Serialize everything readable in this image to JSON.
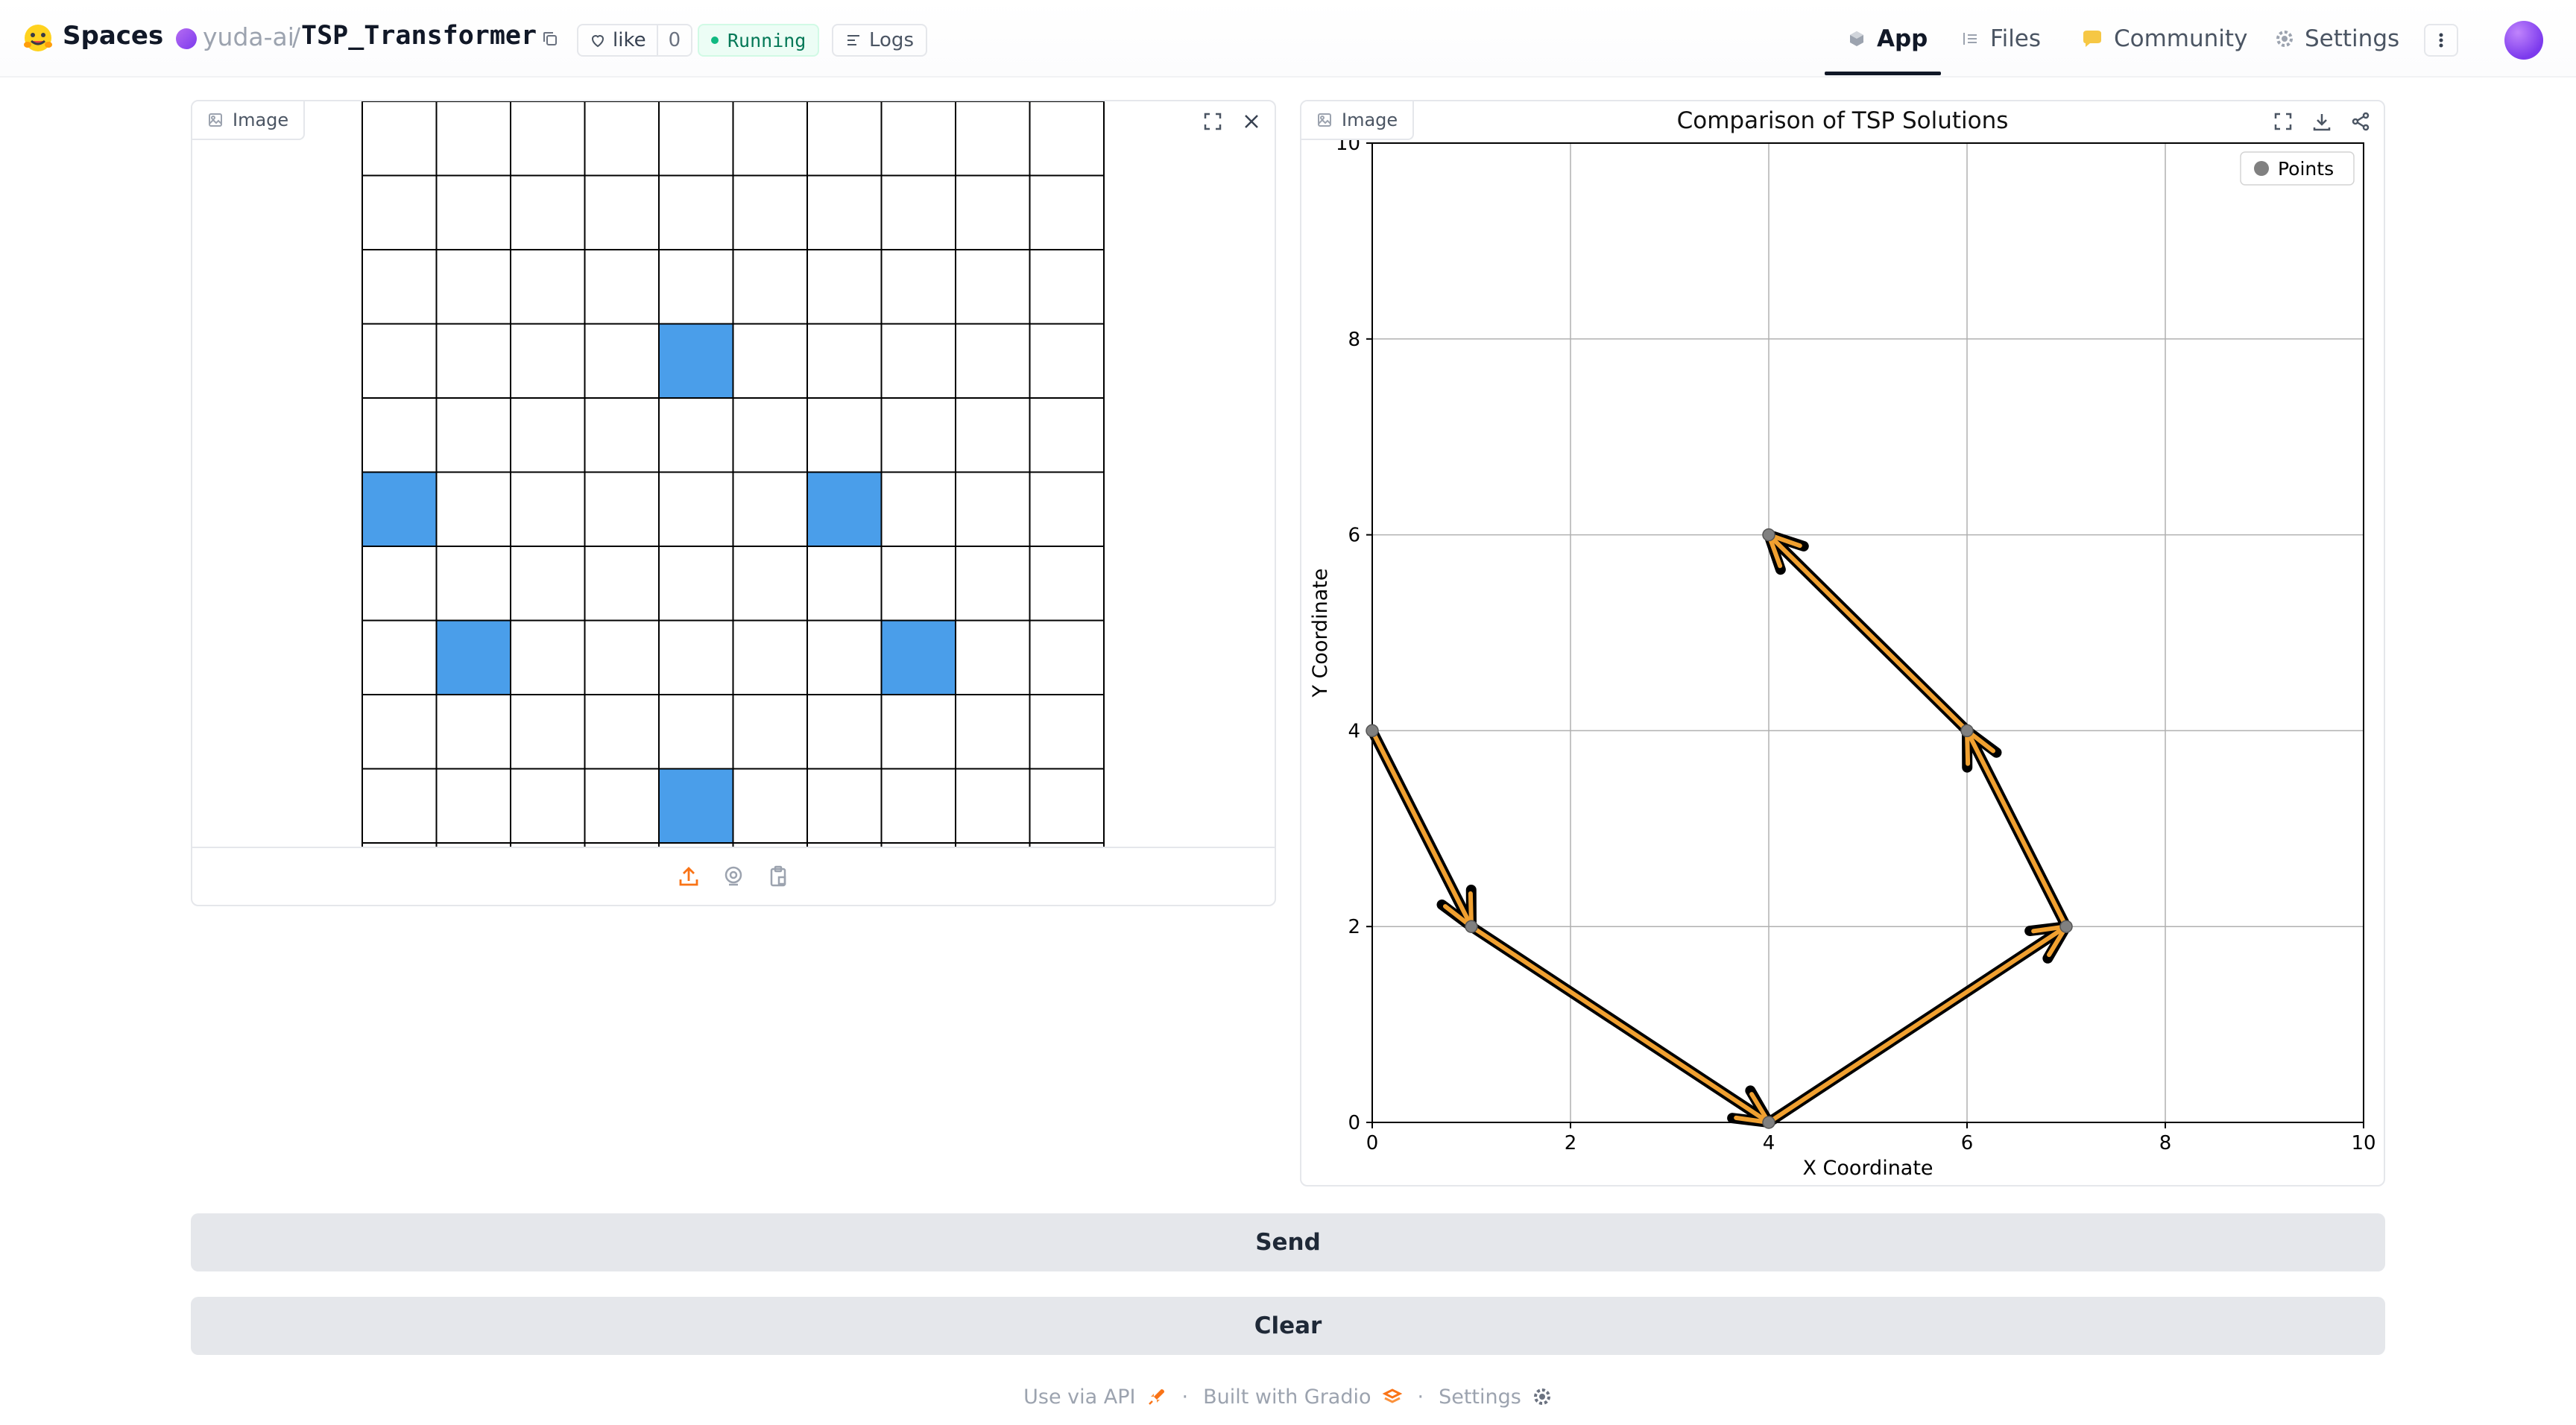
{
  "header": {
    "brand": "Spaces",
    "owner": "yuda-ai",
    "separator": "/",
    "repo": "TSP_Transformer",
    "like_label": "like",
    "like_count": "0",
    "status": "Running",
    "logs_label": "Logs",
    "tabs": [
      {
        "label": "App",
        "icon": "cube-icon",
        "active": true
      },
      {
        "label": "Files",
        "icon": "files-icon",
        "active": false
      },
      {
        "label": "Community",
        "icon": "community-icon",
        "active": false
      },
      {
        "label": "Settings",
        "icon": "gear-icon",
        "active": false
      }
    ]
  },
  "input_panel": {
    "label": "Image",
    "grid": {
      "cols": 10,
      "rows": 10,
      "highlight_color": "#4a9eea",
      "highlighted_cells": [
        [
          4,
          3
        ],
        [
          0,
          5
        ],
        [
          6,
          5
        ],
        [
          1,
          7
        ],
        [
          7,
          7
        ],
        [
          4,
          9
        ]
      ]
    },
    "tools": [
      "fullscreen-icon",
      "close-icon"
    ],
    "source_icons": [
      "upload-icon",
      "webcam-icon",
      "clipboard-icon"
    ]
  },
  "output_panel": {
    "label": "Image",
    "tools": [
      "fullscreen-icon",
      "download-icon",
      "share-icon"
    ]
  },
  "chart_data": {
    "type": "scatter",
    "title": "Comparison of TSP Solutions",
    "xlabel": "X Coordinate",
    "ylabel": "Y Coordinate",
    "xlim": [
      0,
      10
    ],
    "ylim": [
      0,
      10
    ],
    "xticks": [
      0,
      2,
      4,
      6,
      8,
      10
    ],
    "yticks": [
      0,
      2,
      4,
      6,
      8,
      10
    ],
    "grid": true,
    "legend": {
      "placement": "top-right",
      "entries": [
        "Points"
      ]
    },
    "points": {
      "name": "Points",
      "x": [
        0,
        1,
        4,
        7,
        6,
        4
      ],
      "y": [
        4,
        2,
        0,
        2,
        4,
        6
      ],
      "color": "#808080"
    },
    "route": {
      "x": [
        0,
        1,
        4,
        7,
        6,
        4
      ],
      "y": [
        4,
        2,
        0,
        2,
        4,
        6
      ],
      "arrow_outline_color": "#000000",
      "arrow_fill_color": "#f0a030"
    }
  },
  "actions": {
    "send_label": "Send",
    "clear_label": "Clear"
  },
  "footer": {
    "api_label": "Use via API",
    "built_label": "Built with Gradio",
    "settings_label": "Settings"
  }
}
